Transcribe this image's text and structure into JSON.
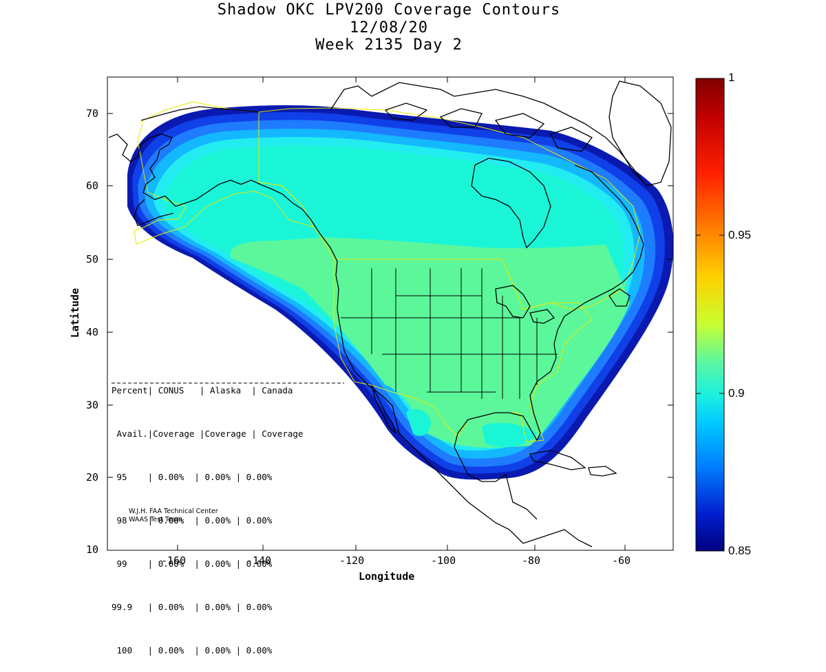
{
  "title": [
    "Shadow OKC LPV200 Coverage Contours",
    "12/08/20",
    "Week 2135 Day 2"
  ],
  "axes": {
    "xlabel": "Longitude",
    "ylabel": "Latitude",
    "xticks": [
      "-160",
      "-140",
      "-120",
      "-100",
      "-80",
      "-60"
    ],
    "yticks": [
      "70",
      "60",
      "50",
      "40",
      "30",
      "20",
      "10"
    ]
  },
  "colorbar": {
    "ticks": [
      "1",
      "0.95",
      "0.9",
      "0.85"
    ],
    "colors": [
      "#800000",
      "#c00000",
      "#ff2000",
      "#ff8000",
      "#ffd000",
      "#c8ff30",
      "#5cf7a0",
      "#1cf0e0",
      "#00c8ff",
      "#0080ff",
      "#0020d0",
      "#000080"
    ]
  },
  "coverage_table": {
    "header1": "Percent| CONUS   | Alaska  | Canada",
    "header2": " Avail.|Coverage |Coverage | Coverage",
    "rows": [
      " 95    | 0.00%  | 0.00% | 0.00%",
      " 98    | 0.00%  | 0.00% | 0.00%",
      " 99    | 0.00%  | 0.00% | 0.00%",
      "99.9   | 0.00%  | 0.00% | 0.00%",
      " 100   | 0.00%  | 0.00% | 0.00%"
    ]
  },
  "credit": [
    "W.J.H. FAA Technical Center",
    "WAAS Test Team"
  ],
  "map_colors": {
    "outer": "#0a1ab0",
    "ring2": "#1040e8",
    "ring3": "#1e7cff",
    "ring4": "#14b8ff",
    "cyan": "#22ecf0",
    "aqua": "#1af5d8",
    "green": "#5cf79a",
    "coast": "#000000",
    "boundary": "#e8e800"
  }
}
